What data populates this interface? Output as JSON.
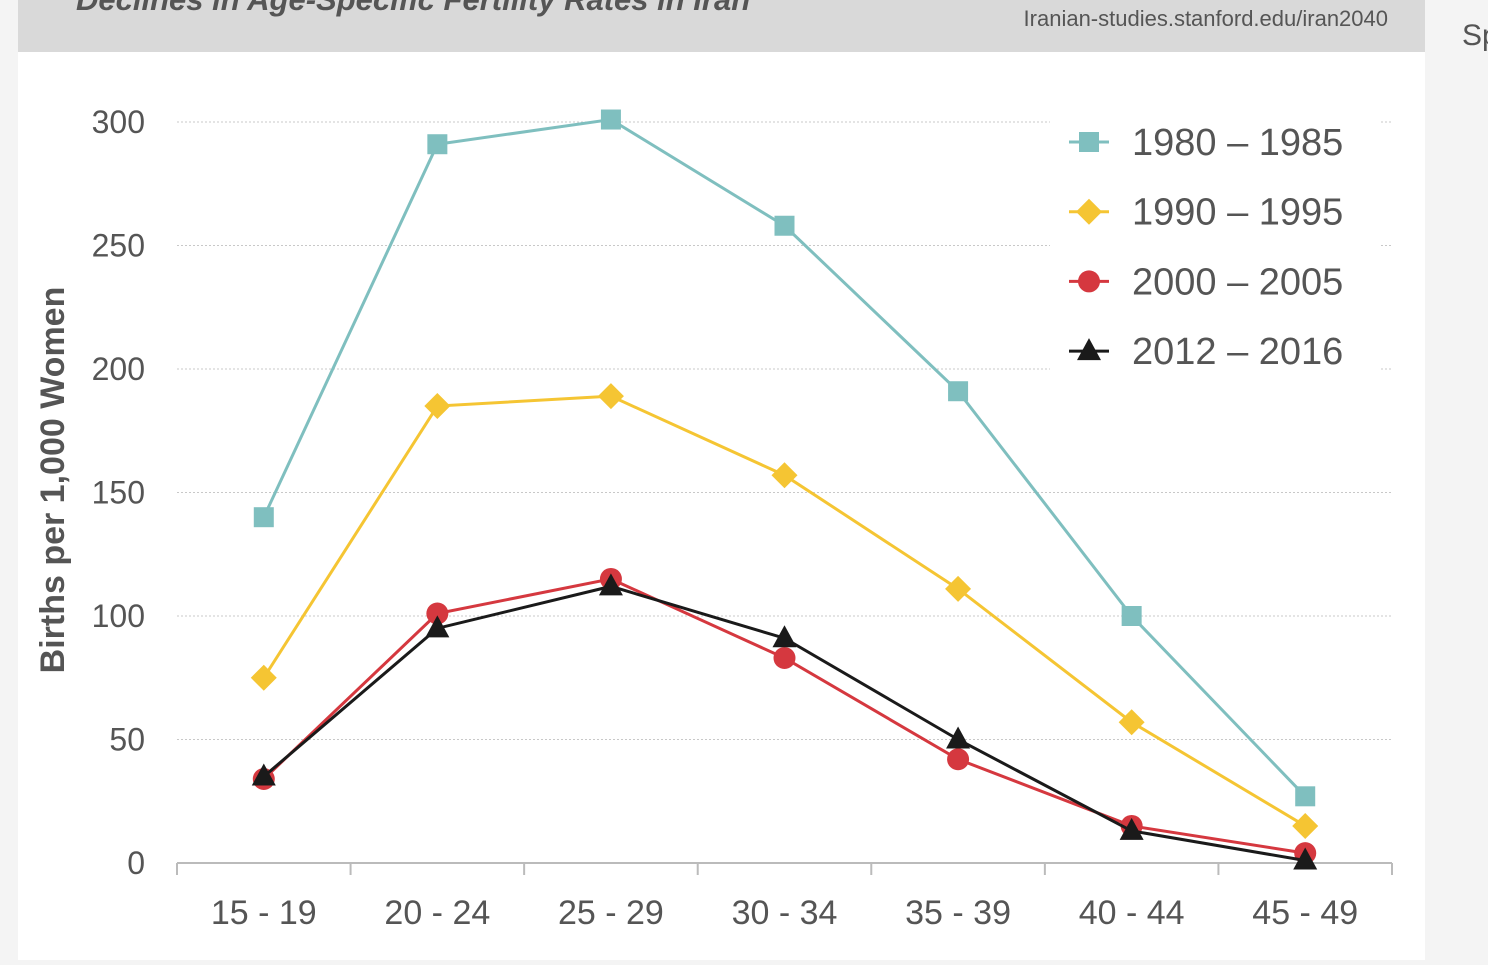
{
  "chart_data": {
    "type": "line",
    "title": "Declines in Age-Specific Fertility Rates in Iran",
    "source": "Iranian-studies.stanford.edu/iran2040",
    "y_label": "Births per 1,000 Women",
    "categories": [
      "15 - 19",
      "20 - 24",
      "25 - 29",
      "30 - 34",
      "35 - 39",
      "40 - 44",
      "45 - 49"
    ],
    "series": [
      {
        "name": "1980 – 1985",
        "color": "#7fbfbf",
        "marker": "square",
        "values": [
          140,
          291,
          301,
          258,
          191,
          100,
          27
        ]
      },
      {
        "name": "1990 – 1995",
        "color": "#f5c533",
        "marker": "diamond",
        "values": [
          75,
          185,
          189,
          157,
          111,
          57,
          15
        ]
      },
      {
        "name": "2000 – 2005",
        "color": "#d5383f",
        "marker": "circle",
        "values": [
          34,
          101,
          115,
          83,
          42,
          15,
          4
        ]
      },
      {
        "name": "2012 – 2016",
        "color": "#1a1a1a",
        "marker": "triangle",
        "values": [
          35,
          95,
          112,
          91,
          50,
          13,
          1
        ]
      }
    ],
    "ylim": [
      0,
      300
    ],
    "yticks": [
      0,
      50,
      100,
      150,
      200,
      250,
      300
    ],
    "grid": true,
    "legend": "top-right"
  },
  "sidebar_text": "Sp"
}
